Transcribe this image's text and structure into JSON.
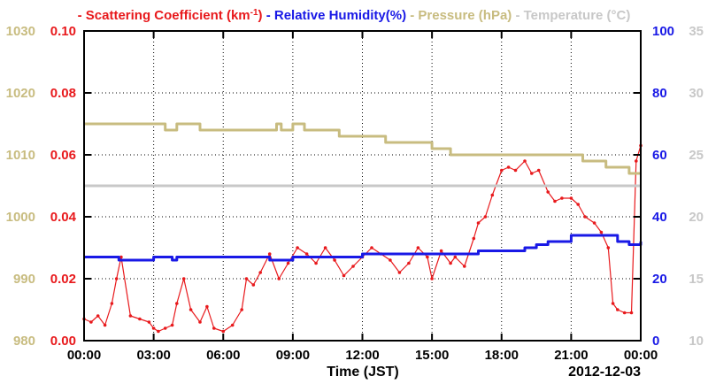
{
  "chart_data": {
    "type": "line",
    "legend": [
      {
        "text": "- Scattering Coefficient (km",
        "sup": "-1",
        "text_after": ")",
        "color": "#e8191c"
      },
      {
        "text": "- Relative Humidity(%)",
        "color": "#1919e6"
      },
      {
        "text": "- Pressure (hPa)",
        "color": "#c8bc80"
      },
      {
        "text": "- Temperature (°C)",
        "color": "#c8c8c8"
      }
    ],
    "legend_placement": "top",
    "xlabel": "Time (JST)",
    "date_label": "2012-12-03",
    "x_ticks": [
      "00:00",
      "03:00",
      "06:00",
      "09:00",
      "12:00",
      "15:00",
      "18:00",
      "21:00",
      "00:00"
    ],
    "x_range_hours": [
      0,
      24
    ],
    "grid": true,
    "axes": {
      "pressure": {
        "side": "left-outer",
        "range": [
          980,
          1030
        ],
        "ticks": [
          "980",
          "990",
          "1000",
          "1010",
          "1020",
          "1030"
        ],
        "color": "#c8bc80"
      },
      "scattering": {
        "side": "left-inner",
        "range": [
          0.0,
          0.1
        ],
        "ticks": [
          "0.00",
          "0.02",
          "0.04",
          "0.06",
          "0.08",
          "0.10"
        ],
        "color": "#e8191c"
      },
      "humidity": {
        "side": "right-inner",
        "range": [
          0,
          100
        ],
        "ticks": [
          "0",
          "20",
          "40",
          "60",
          "80",
          "100"
        ],
        "color": "#1919e6"
      },
      "temperature": {
        "side": "right-outer",
        "range": [
          10,
          35
        ],
        "ticks": [
          "10",
          "15",
          "20",
          "25",
          "30",
          "35"
        ],
        "color": "#c8c8c8"
      }
    },
    "series": [
      {
        "name": "Scattering Coefficient",
        "axis": "scattering",
        "color": "#e8191c",
        "x": [
          0.0,
          0.3,
          0.6,
          0.9,
          1.2,
          1.4,
          1.6,
          2.0,
          2.4,
          2.8,
          3.0,
          3.2,
          3.5,
          3.8,
          4.0,
          4.3,
          4.6,
          5.0,
          5.3,
          5.6,
          6.0,
          6.4,
          6.8,
          7.0,
          7.3,
          7.6,
          8.0,
          8.4,
          8.8,
          9.2,
          9.6,
          10.0,
          10.4,
          10.8,
          11.2,
          11.6,
          12.0,
          12.4,
          12.8,
          13.2,
          13.6,
          14.0,
          14.4,
          14.8,
          15.0,
          15.4,
          15.8,
          16.0,
          16.4,
          16.8,
          17.0,
          17.3,
          17.6,
          18.0,
          18.3,
          18.6,
          19.0,
          19.3,
          19.6,
          20.0,
          20.3,
          20.6,
          21.0,
          21.3,
          21.6,
          22.0,
          22.3,
          22.6,
          22.8,
          23.0,
          23.3,
          23.6,
          23.8,
          24.0
        ],
        "values": [
          0.007,
          0.006,
          0.008,
          0.005,
          0.012,
          0.02,
          0.027,
          0.008,
          0.007,
          0.006,
          0.004,
          0.003,
          0.004,
          0.005,
          0.012,
          0.02,
          0.01,
          0.006,
          0.011,
          0.004,
          0.003,
          0.005,
          0.01,
          0.02,
          0.018,
          0.022,
          0.028,
          0.02,
          0.025,
          0.03,
          0.028,
          0.025,
          0.03,
          0.026,
          0.021,
          0.024,
          0.027,
          0.03,
          0.028,
          0.026,
          0.022,
          0.025,
          0.03,
          0.027,
          0.02,
          0.029,
          0.025,
          0.027,
          0.024,
          0.033,
          0.038,
          0.04,
          0.047,
          0.055,
          0.056,
          0.055,
          0.058,
          0.054,
          0.055,
          0.048,
          0.045,
          0.046,
          0.046,
          0.044,
          0.04,
          0.038,
          0.035,
          0.03,
          0.012,
          0.01,
          0.009,
          0.009,
          0.058,
          0.063
        ]
      },
      {
        "name": "Relative Humidity",
        "axis": "humidity",
        "color": "#1919e6",
        "x": [
          0.0,
          1.0,
          1.5,
          2.0,
          3.0,
          3.8,
          4.0,
          5.0,
          6.0,
          7.0,
          8.0,
          9.0,
          10.0,
          11.0,
          12.0,
          13.0,
          14.0,
          15.0,
          16.0,
          17.0,
          18.0,
          19.0,
          19.5,
          20.0,
          21.0,
          22.0,
          22.5,
          23.0,
          23.5,
          24.0
        ],
        "values": [
          27,
          27,
          26,
          26,
          27,
          26,
          27,
          27,
          27,
          27,
          26,
          27,
          27,
          27,
          28,
          28,
          28,
          28,
          28,
          29,
          29,
          30,
          31,
          32,
          34,
          34,
          34,
          32,
          31,
          32
        ]
      },
      {
        "name": "Pressure",
        "axis": "pressure",
        "color": "#c8bc80",
        "x": [
          0.0,
          3.0,
          3.5,
          4.0,
          5.0,
          6.0,
          7.0,
          8.0,
          8.3,
          8.5,
          9.0,
          9.5,
          10.0,
          10.5,
          11.0,
          12.0,
          13.0,
          14.0,
          15.0,
          15.8,
          16.0,
          17.0,
          18.0,
          19.0,
          20.0,
          21.0,
          21.5,
          22.0,
          22.5,
          23.0,
          23.5,
          24.0
        ],
        "values": [
          1015,
          1015,
          1014,
          1015,
          1014,
          1014,
          1014,
          1014,
          1015,
          1014,
          1015,
          1014,
          1014,
          1014,
          1013,
          1013,
          1012,
          1012,
          1011,
          1010,
          1010,
          1010,
          1010,
          1010,
          1010,
          1010,
          1009,
          1009,
          1008,
          1008,
          1007,
          1007
        ]
      },
      {
        "name": "Temperature",
        "axis": "temperature",
        "color": "#c8c8c8",
        "x": [
          0.0,
          24.0
        ],
        "values": [
          22.5,
          22.5
        ]
      }
    ]
  }
}
